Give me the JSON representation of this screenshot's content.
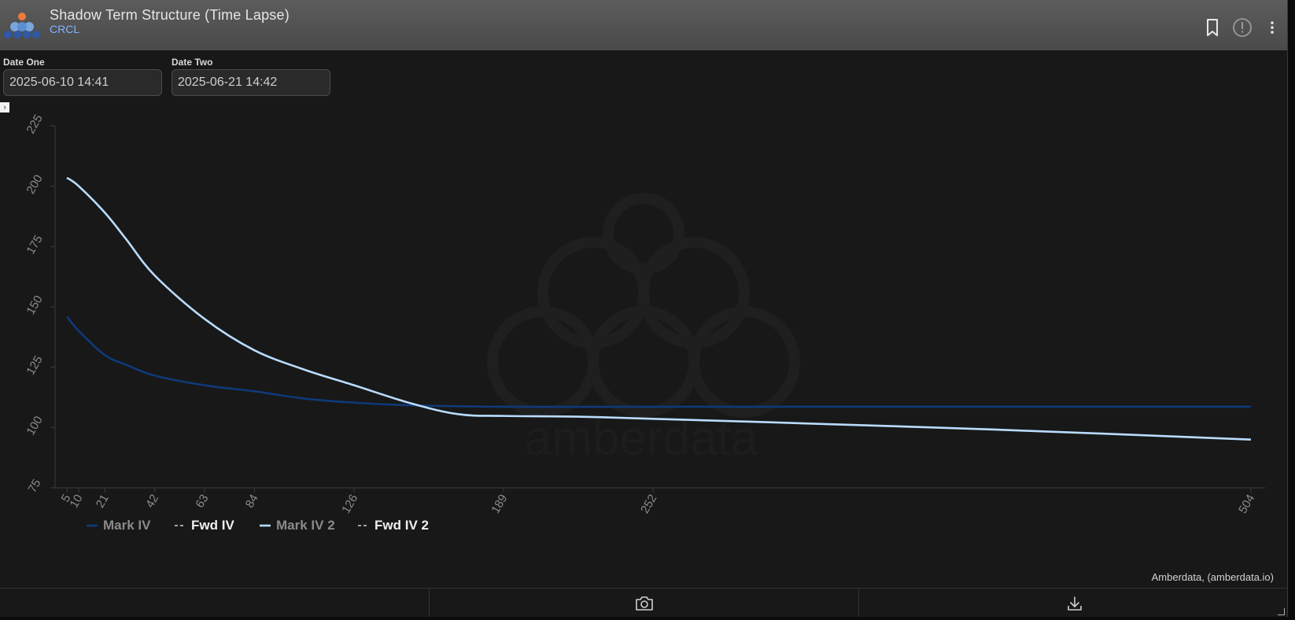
{
  "header": {
    "title": "Shadow Term Structure (Time Lapse)",
    "subtitle": "CRCL",
    "icons": [
      "bookmark-icon",
      "alert-icon",
      "more-vert-icon"
    ]
  },
  "controls": {
    "date_one_label": "Date One",
    "date_one_value": "2025-06-10 14:41",
    "date_two_label": "Date Two",
    "date_two_value": "2025-06-21 14:42"
  },
  "watermark_text": "amberdata",
  "credit": "Amberdata, (amberdata.io)",
  "footer": {
    "icons": [
      "camera-icon",
      "download-icon"
    ]
  },
  "colors": {
    "mark_iv": "#0e3a7a",
    "mark_iv_2": "#b9dcff",
    "fwd": "#d0d0d0",
    "axis_text": "#8a8a8a",
    "subtitle": "#7fb2ff"
  },
  "chart_data": {
    "type": "line",
    "xlabel": "",
    "ylabel": "",
    "x_ticks": [
      5,
      10,
      21,
      42,
      63,
      84,
      126,
      189,
      252,
      504
    ],
    "y_ticks": [
      75,
      100,
      125,
      150,
      175,
      200,
      225
    ],
    "xlim": [
      0,
      510
    ],
    "ylim": [
      75,
      225
    ],
    "grid": false,
    "legend_position": "bottom-left",
    "series": [
      {
        "name": "Mark IV",
        "style": "solid",
        "x": [
          5,
          10,
          21,
          30,
          42,
          63,
          84,
          105,
          126,
          150,
          189,
          252,
          504
        ],
        "y": [
          146,
          140,
          130,
          126,
          121.5,
          117.5,
          115,
          112,
          110.3,
          109.2,
          108.6,
          108.6,
          108.6
        ]
      },
      {
        "name": "Fwd IV",
        "style": "dashed",
        "x": [],
        "y": []
      },
      {
        "name": "Mark IV 2",
        "style": "solid",
        "x": [
          5,
          10,
          21,
          30,
          42,
          63,
          84,
          105,
          126,
          150,
          170,
          189,
          220,
          252,
          300,
          400,
          504
        ],
        "y": [
          203.5,
          200,
          189,
          178,
          163,
          145,
          132,
          124,
          117.5,
          110,
          105.5,
          104.8,
          104.5,
          103.6,
          102.2,
          99,
          95
        ]
      },
      {
        "name": "Fwd IV 2",
        "style": "dashed",
        "x": [],
        "y": []
      }
    ]
  }
}
